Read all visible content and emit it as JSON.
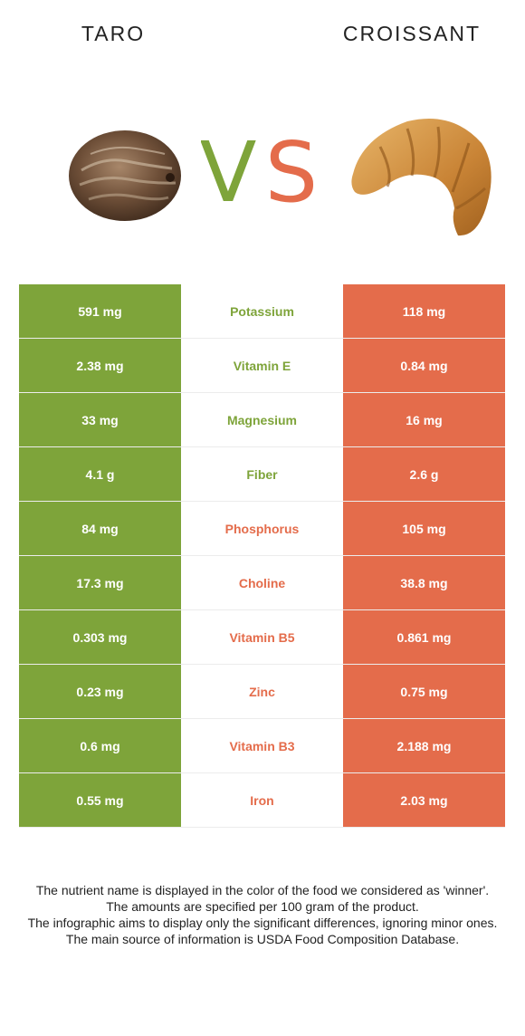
{
  "header": {
    "left_title": "TARO",
    "right_title": "CROISSANT",
    "vs_left": "V",
    "vs_right": "S"
  },
  "colors": {
    "taro": "#7ea43a",
    "croissant": "#e46c4b"
  },
  "rows": [
    {
      "nutrient": "Potassium",
      "left": "591 mg",
      "right": "118 mg",
      "winner": "taro"
    },
    {
      "nutrient": "Vitamin E",
      "left": "2.38 mg",
      "right": "0.84 mg",
      "winner": "taro"
    },
    {
      "nutrient": "Magnesium",
      "left": "33 mg",
      "right": "16 mg",
      "winner": "taro"
    },
    {
      "nutrient": "Fiber",
      "left": "4.1 g",
      "right": "2.6 g",
      "winner": "taro"
    },
    {
      "nutrient": "Phosphorus",
      "left": "84 mg",
      "right": "105 mg",
      "winner": "croissant"
    },
    {
      "nutrient": "Choline",
      "left": "17.3 mg",
      "right": "38.8 mg",
      "winner": "croissant"
    },
    {
      "nutrient": "Vitamin B5",
      "left": "0.303 mg",
      "right": "0.861 mg",
      "winner": "croissant"
    },
    {
      "nutrient": "Zinc",
      "left": "0.23 mg",
      "right": "0.75 mg",
      "winner": "croissant"
    },
    {
      "nutrient": "Vitamin B3",
      "left": "0.6 mg",
      "right": "2.188 mg",
      "winner": "croissant"
    },
    {
      "nutrient": "Iron",
      "left": "0.55 mg",
      "right": "2.03 mg",
      "winner": "croissant"
    }
  ],
  "footer": [
    "The nutrient name is displayed in the color of the food we considered as 'winner'.",
    "The amounts are specified per 100 gram of the product.",
    "The infographic aims to display only the significant differences, ignoring minor ones.",
    "The main source of information is USDA Food Composition Database."
  ]
}
